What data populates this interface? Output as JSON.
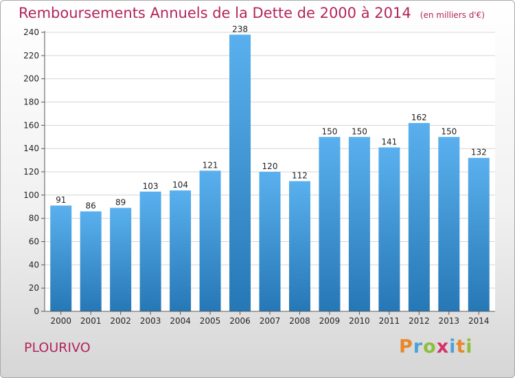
{
  "header": {
    "title": "Remboursements Annuels de la Dette de 2000 à 2014",
    "subtitle": "(en milliers d'€)"
  },
  "footer": {
    "place": "PLOURIVO",
    "logo": "Proxiti"
  },
  "colors": {
    "title": "#b3245a",
    "bar_top": "#5ab0ee",
    "bar_bottom": "#2677b5",
    "grid": "#d4d4d4",
    "logo_letters": [
      "#e7882a",
      "#4aa3d8",
      "#8cbf3a",
      "#d62f6a",
      "#4aa3d8",
      "#e7882a",
      "#8cbf3a"
    ]
  },
  "chart_data": {
    "type": "bar",
    "categories": [
      "2000",
      "2001",
      "2002",
      "2003",
      "2004",
      "2005",
      "2006",
      "2007",
      "2008",
      "2009",
      "2010",
      "2011",
      "2012",
      "2013",
      "2014"
    ],
    "values": [
      91,
      86,
      89,
      103,
      104,
      121,
      238,
      120,
      112,
      150,
      150,
      141,
      162,
      150,
      132
    ],
    "ylim": [
      0,
      240
    ],
    "yticks": [
      0,
      20,
      40,
      60,
      80,
      100,
      120,
      140,
      160,
      180,
      200,
      220,
      240
    ],
    "grid": true,
    "xlabel": "",
    "ylabel": ""
  }
}
